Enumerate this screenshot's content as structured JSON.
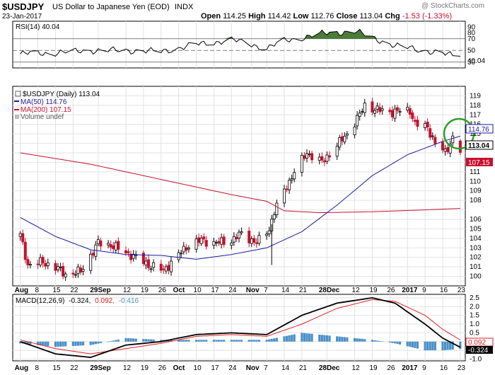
{
  "header": {
    "symbol": "$USDJPY",
    "description": "US Dollar to Japanese Yen (EOD)",
    "exchange": "INDX",
    "watermark": "@ StockCharts.com",
    "date": "23-Jan-2017",
    "open_label": "Open",
    "open": "114.25",
    "high_label": "High",
    "high": "114.42",
    "low_label": "Low",
    "low": "112.76",
    "close_label": "Close",
    "close": "113.04",
    "chg_label": "Chg",
    "chg": "-1.53 (-1.33%)"
  },
  "rsi_panel": {
    "legend": "RSI(14) 40.04",
    "current_tag": "40.04"
  },
  "price_panel": {
    "legend_title": "$USDJPY (Daily) 113.04",
    "ma50_legend": "MA(50) 114.76",
    "ma200_legend": "MA(200) 107.15",
    "volume_legend": "Volume undef",
    "tag_ma50": "114.76",
    "tag_close": "113.04",
    "tag_ma200": "107.15"
  },
  "macd_panel": {
    "legend_name": "MACD(12,26,9)",
    "legend_v1": "-0.324,",
    "legend_v2": "0.092,",
    "legend_v3": "-0.416",
    "tag_signal": "0.092",
    "tag_macd": "-0.324"
  },
  "colors": {
    "up": "#000000",
    "down": "#c8102e",
    "ma50": "#1a1aa0",
    "ma200": "#c8102e",
    "rsi_fill": "#4a7d3a",
    "histogram": "#4a90c8",
    "macd": "#000000",
    "signal": "#e02020",
    "highlight_circle": "#2aa02a"
  },
  "chart_data": [
    {
      "type": "line",
      "name": "RSI(14)",
      "ylim": [
        20,
        100
      ],
      "y_ticks": [
        30,
        40,
        50,
        70,
        80,
        90
      ],
      "reference_lines": [
        30,
        50,
        70
      ],
      "x": [
        "2016-08-01",
        "2016-08-15",
        "2016-08-29",
        "2016-09-12",
        "2016-09-26",
        "2016-10-10",
        "2016-10-24",
        "2016-11-07",
        "2016-11-14",
        "2016-11-28",
        "2016-12-12",
        "2016-12-19",
        "2016-12-28",
        "2017-01-09",
        "2017-01-16",
        "2017-01-23"
      ],
      "values": [
        44,
        46,
        50,
        50,
        48,
        60,
        68,
        54,
        66,
        78,
        83,
        72,
        58,
        50,
        44,
        40.04
      ]
    },
    {
      "type": "candlestick",
      "title": "$USDJPY (Daily) 113.04",
      "ylim": [
        99,
        120
      ],
      "y_ticks": [
        100,
        101,
        102,
        103,
        104,
        105,
        106,
        107,
        108,
        109,
        110,
        111,
        112,
        113,
        114,
        115,
        116,
        117,
        118,
        119
      ],
      "x_ticks": [
        "Aug",
        "8",
        "15",
        "22",
        "29Sep",
        "12",
        "19",
        "26",
        "Oct",
        "10",
        "17",
        "24",
        "Nov",
        "7",
        "14",
        "21",
        "28Dec",
        "12",
        "19",
        "26",
        "2017",
        "9",
        "16",
        "23"
      ],
      "close_path": {
        "dates": [
          "2016-08-01",
          "2016-08-04",
          "2016-08-10",
          "2016-08-16",
          "2016-08-19",
          "2016-08-25",
          "2016-09-01",
          "2016-09-06",
          "2016-09-12",
          "2016-09-16",
          "2016-09-21",
          "2016-09-27",
          "2016-10-03",
          "2016-10-07",
          "2016-10-12",
          "2016-10-18",
          "2016-10-24",
          "2016-10-28",
          "2016-11-03",
          "2016-11-08",
          "2016-11-10",
          "2016-11-15",
          "2016-11-18",
          "2016-11-23",
          "2016-11-29",
          "2016-12-05",
          "2016-12-09",
          "2016-12-14",
          "2016-12-16",
          "2016-12-21",
          "2016-12-27",
          "2017-01-03",
          "2017-01-05",
          "2017-01-10",
          "2017-01-13",
          "2017-01-17",
          "2017-01-20",
          "2017-01-23"
        ],
        "closes": [
          104.3,
          101.2,
          101.5,
          100.8,
          100.2,
          100.5,
          103.5,
          103.3,
          102.5,
          102.0,
          101.2,
          100.6,
          102.3,
          103.3,
          103.8,
          103.5,
          103.8,
          104.5,
          103.5,
          105.0,
          106.8,
          109.5,
          111.0,
          113.0,
          112.0,
          113.8,
          115.0,
          117.0,
          118.0,
          117.5,
          117.3,
          117.5,
          116.0,
          115.7,
          114.0,
          113.0,
          114.6,
          113.04
        ]
      },
      "series": [
        {
          "name": "MA(50)",
          "dates": [
            "2016-08-01",
            "2016-08-15",
            "2016-08-29",
            "2016-09-12",
            "2016-09-26",
            "2016-10-10",
            "2016-10-24",
            "2016-11-07",
            "2016-11-21",
            "2016-12-05",
            "2016-12-19",
            "2017-01-02",
            "2017-01-16",
            "2017-01-23"
          ],
          "values": [
            106.2,
            104.2,
            102.8,
            102.3,
            102.2,
            101.8,
            102.3,
            103.0,
            104.7,
            107.5,
            110.6,
            112.8,
            114.2,
            114.76
          ]
        },
        {
          "name": "MA(200)",
          "dates": [
            "2016-08-01",
            "2016-08-29",
            "2016-09-26",
            "2016-10-24",
            "2016-11-07",
            "2016-11-14",
            "2016-11-28",
            "2016-12-19",
            "2017-01-09",
            "2017-01-23"
          ],
          "values": [
            113.0,
            111.8,
            110.2,
            108.6,
            107.9,
            106.9,
            106.7,
            106.8,
            107.0,
            107.15
          ]
        }
      ]
    },
    {
      "type": "line",
      "name": "MACD(12,26,9)",
      "ylim": [
        -1.1,
        2.7
      ],
      "y_ticks": [
        -1.0,
        -0.5,
        0.0,
        0.5,
        1.0,
        1.5,
        2.0,
        2.5
      ],
      "x": [
        "2016-08-01",
        "2016-08-15",
        "2016-08-29",
        "2016-09-12",
        "2016-09-26",
        "2016-10-10",
        "2016-10-24",
        "2016-11-07",
        "2016-11-21",
        "2016-12-05",
        "2016-12-19",
        "2016-12-28",
        "2017-01-09",
        "2017-01-16",
        "2017-01-23"
      ],
      "series": [
        {
          "name": "MACD",
          "values": [
            0.0,
            -0.7,
            -0.9,
            -0.2,
            0.0,
            0.4,
            0.5,
            0.4,
            1.5,
            2.2,
            2.5,
            2.2,
            1.0,
            0.2,
            -0.324
          ]
        },
        {
          "name": "Signal",
          "values": [
            0.1,
            -0.4,
            -0.7,
            -0.4,
            -0.1,
            0.3,
            0.4,
            0.3,
            1.0,
            1.9,
            2.4,
            2.3,
            1.5,
            0.7,
            0.092
          ]
        },
        {
          "name": "Histogram",
          "values": [
            -0.1,
            -0.3,
            -0.2,
            0.2,
            0.1,
            0.1,
            0.1,
            0.1,
            0.5,
            0.3,
            0.1,
            -0.1,
            -0.5,
            -0.5,
            -0.416
          ]
        }
      ]
    }
  ]
}
